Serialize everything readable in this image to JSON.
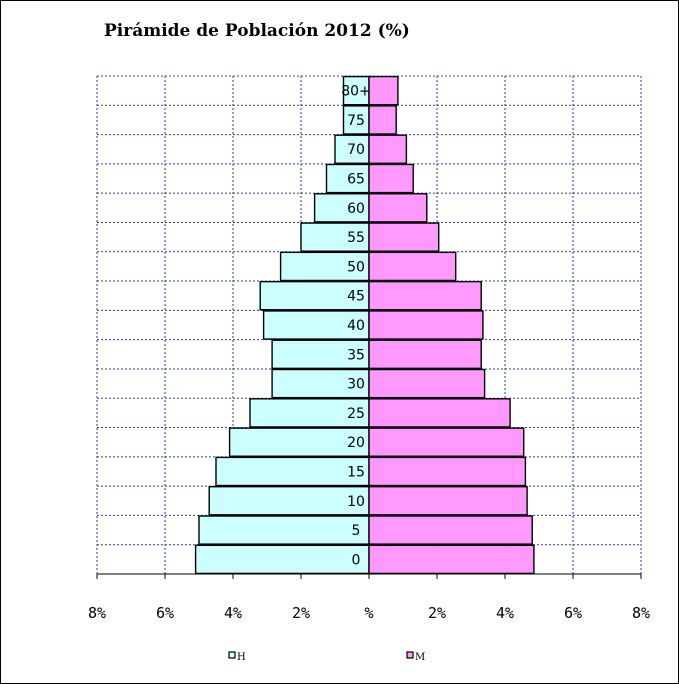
{
  "chart_data": {
    "type": "bar",
    "title": "Pirámide de Población 2012 (%)",
    "orientation": "horizontal-pyramid",
    "categories": [
      "0",
      "5",
      "10",
      "15",
      "20",
      "25",
      "30",
      "35",
      "40",
      "45",
      "50",
      "55",
      "60",
      "65",
      "70",
      "75",
      "80+"
    ],
    "series": [
      {
        "name": "H",
        "color": "#ccffff",
        "values": [
          5.1,
          5.0,
          4.7,
          4.5,
          4.1,
          3.5,
          2.85,
          2.85,
          3.1,
          3.2,
          2.6,
          2.0,
          1.6,
          1.25,
          1.0,
          0.75,
          0.75
        ]
      },
      {
        "name": "M",
        "color": "#ff99ff",
        "values": [
          4.85,
          4.8,
          4.65,
          4.6,
          4.55,
          4.15,
          3.4,
          3.3,
          3.35,
          3.3,
          2.55,
          2.05,
          1.7,
          1.3,
          1.1,
          0.8,
          0.85
        ]
      }
    ],
    "xlim": [
      -8,
      8
    ],
    "x_ticks": [
      "8%",
      "6%",
      "4%",
      "2%",
      "%",
      "2%",
      "4%",
      "6%",
      "8%"
    ],
    "grid": true,
    "legend": {
      "position": "bottom",
      "entries": [
        "H",
        "M"
      ]
    }
  }
}
